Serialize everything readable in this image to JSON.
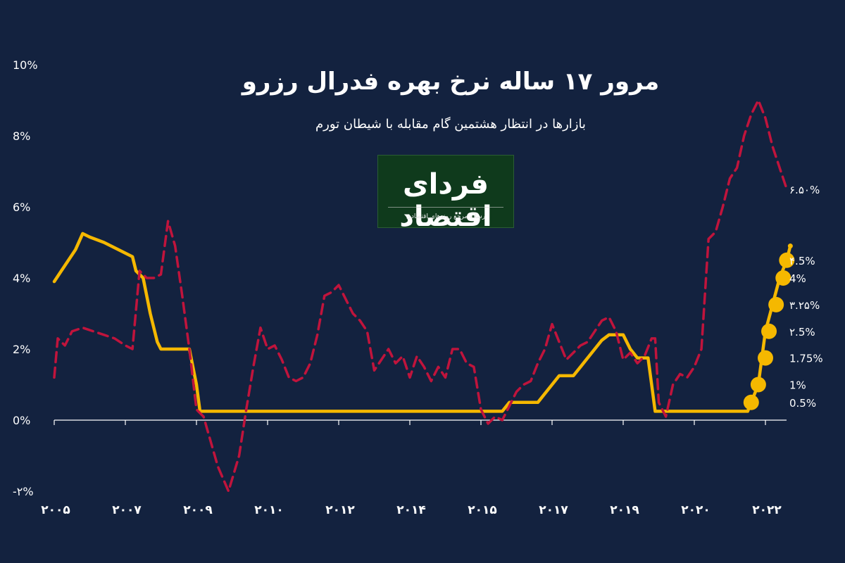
{
  "chart_data": {
    "type": "line",
    "title": "مرور ۱۷ ساله نرخ بهره فدرال رزرو",
    "subtitle": "بازارها در انتظار هشتمین گام مقابله با شیطان تورم",
    "x_tick_labels": [
      "۲۰۰۵",
      "۲۰۰۷",
      "۲۰۰۹",
      "۲۰۱۰",
      "۲۰۱۲",
      "۲۰۱۴",
      "۲۰۱۵",
      "۲۰۱۷",
      "۲۰۱۹",
      "۲۰۲۰",
      "۲۰۲۲"
    ],
    "y_tick_labels": [
      "-۲%",
      "0%",
      "2%",
      "4%",
      "6%",
      "8%",
      "10%"
    ],
    "y_ticks": [
      -2,
      0,
      2,
      4,
      6,
      8,
      10
    ],
    "ylim": [
      -2,
      10
    ],
    "x_range_index": [
      0,
      10.4
    ],
    "colors": {
      "fed_rate": "#f5b800",
      "inflation": "#c0143c",
      "background": "#13223f"
    },
    "series": [
      {
        "key": "fed_rate",
        "style": "solid",
        "points": [
          [
            0,
            3.9
          ],
          [
            0.1,
            4.2
          ],
          [
            0.3,
            4.8
          ],
          [
            0.4,
            5.25
          ],
          [
            0.5,
            5.15
          ],
          [
            0.7,
            5.0
          ],
          [
            0.9,
            4.8
          ],
          [
            1.1,
            4.6
          ],
          [
            1.15,
            4.2
          ],
          [
            1.25,
            4.0
          ],
          [
            1.35,
            3.0
          ],
          [
            1.45,
            2.2
          ],
          [
            1.5,
            2.0
          ],
          [
            1.6,
            2.0
          ],
          [
            1.7,
            2.0
          ],
          [
            1.9,
            2.0
          ],
          [
            2.0,
            1.0
          ],
          [
            2.05,
            0.25
          ],
          [
            2.1,
            0.25
          ],
          [
            3.0,
            0.25
          ],
          [
            4.0,
            0.25
          ],
          [
            5.0,
            0.25
          ],
          [
            6.0,
            0.25
          ],
          [
            6.3,
            0.25
          ],
          [
            6.4,
            0.5
          ],
          [
            6.8,
            0.5
          ],
          [
            6.9,
            0.75
          ],
          [
            7.0,
            1.0
          ],
          [
            7.1,
            1.25
          ],
          [
            7.3,
            1.25
          ],
          [
            7.4,
            1.5
          ],
          [
            7.5,
            1.75
          ],
          [
            7.6,
            2.0
          ],
          [
            7.7,
            2.25
          ],
          [
            7.8,
            2.4
          ],
          [
            7.9,
            2.4
          ],
          [
            8.0,
            2.4
          ],
          [
            8.1,
            2.0
          ],
          [
            8.2,
            1.75
          ],
          [
            8.35,
            1.75
          ],
          [
            8.4,
            1.0
          ],
          [
            8.45,
            0.25
          ],
          [
            8.6,
            0.25
          ],
          [
            9.0,
            0.25
          ],
          [
            9.5,
            0.25
          ],
          [
            9.75,
            0.25
          ],
          [
            9.8,
            0.5
          ],
          [
            9.9,
            1.0
          ],
          [
            9.95,
            1.75
          ],
          [
            10.0,
            2.5
          ],
          [
            10.1,
            3.25
          ],
          [
            10.2,
            4.0
          ],
          [
            10.3,
            4.5
          ],
          [
            10.35,
            4.9
          ]
        ],
        "markers": [
          [
            9.8,
            0.5
          ],
          [
            9.9,
            1.0
          ],
          [
            10.0,
            1.75
          ],
          [
            10.05,
            2.5
          ],
          [
            10.15,
            3.25
          ],
          [
            10.25,
            4.0
          ],
          [
            10.3,
            4.5
          ]
        ]
      },
      {
        "key": "inflation",
        "style": "dashed",
        "points": [
          [
            0,
            1.2
          ],
          [
            0.05,
            2.3
          ],
          [
            0.15,
            2.1
          ],
          [
            0.25,
            2.5
          ],
          [
            0.4,
            2.6
          ],
          [
            0.55,
            2.5
          ],
          [
            0.7,
            2.4
          ],
          [
            0.85,
            2.3
          ],
          [
            1.0,
            2.1
          ],
          [
            1.1,
            2.0
          ],
          [
            1.2,
            4.2
          ],
          [
            1.3,
            4.0
          ],
          [
            1.4,
            4.0
          ],
          [
            1.5,
            4.1
          ],
          [
            1.6,
            5.6
          ],
          [
            1.7,
            4.9
          ],
          [
            1.8,
            3.5
          ],
          [
            1.9,
            2.0
          ],
          [
            2.0,
            0.3
          ],
          [
            2.1,
            0.1
          ],
          [
            2.3,
            -1.3
          ],
          [
            2.45,
            -2.0
          ],
          [
            2.6,
            -1.0
          ],
          [
            2.7,
            0.3
          ],
          [
            2.8,
            1.5
          ],
          [
            2.9,
            2.6
          ],
          [
            3.0,
            2.0
          ],
          [
            3.1,
            2.1
          ],
          [
            3.2,
            1.7
          ],
          [
            3.3,
            1.2
          ],
          [
            3.4,
            1.1
          ],
          [
            3.5,
            1.2
          ],
          [
            3.6,
            1.6
          ],
          [
            3.7,
            2.4
          ],
          [
            3.8,
            3.5
          ],
          [
            3.9,
            3.6
          ],
          [
            4.0,
            3.8
          ],
          [
            4.1,
            3.4
          ],
          [
            4.2,
            3.0
          ],
          [
            4.3,
            2.8
          ],
          [
            4.4,
            2.5
          ],
          [
            4.5,
            1.4
          ],
          [
            4.6,
            1.7
          ],
          [
            4.7,
            2.0
          ],
          [
            4.8,
            1.6
          ],
          [
            4.9,
            1.8
          ],
          [
            5.0,
            1.2
          ],
          [
            5.1,
            1.8
          ],
          [
            5.2,
            1.5
          ],
          [
            5.3,
            1.1
          ],
          [
            5.4,
            1.5
          ],
          [
            5.5,
            1.2
          ],
          [
            5.6,
            2.0
          ],
          [
            5.7,
            2.0
          ],
          [
            5.8,
            1.6
          ],
          [
            5.9,
            1.5
          ],
          [
            6.0,
            0.3
          ],
          [
            6.1,
            -0.1
          ],
          [
            6.2,
            0.1
          ],
          [
            6.3,
            0.0
          ],
          [
            6.4,
            0.4
          ],
          [
            6.5,
            0.8
          ],
          [
            6.6,
            1.0
          ],
          [
            6.7,
            1.1
          ],
          [
            6.8,
            1.6
          ],
          [
            6.9,
            2.0
          ],
          [
            7.0,
            2.7
          ],
          [
            7.1,
            2.2
          ],
          [
            7.2,
            1.7
          ],
          [
            7.3,
            1.9
          ],
          [
            7.4,
            2.1
          ],
          [
            7.5,
            2.2
          ],
          [
            7.6,
            2.5
          ],
          [
            7.7,
            2.8
          ],
          [
            7.8,
            2.9
          ],
          [
            7.9,
            2.5
          ],
          [
            8.0,
            1.7
          ],
          [
            8.1,
            1.9
          ],
          [
            8.2,
            1.6
          ],
          [
            8.3,
            1.8
          ],
          [
            8.4,
            2.3
          ],
          [
            8.45,
            2.3
          ],
          [
            8.5,
            0.5
          ],
          [
            8.6,
            0.1
          ],
          [
            8.7,
            1.0
          ],
          [
            8.8,
            1.3
          ],
          [
            8.9,
            1.2
          ],
          [
            9.0,
            1.5
          ],
          [
            9.1,
            2.0
          ],
          [
            9.2,
            5.1
          ],
          [
            9.3,
            5.3
          ],
          [
            9.4,
            6.0
          ],
          [
            9.5,
            6.8
          ],
          [
            9.6,
            7.1
          ],
          [
            9.7,
            8.0
          ],
          [
            9.8,
            8.6
          ],
          [
            9.9,
            9.0
          ],
          [
            10.0,
            8.5
          ],
          [
            10.1,
            7.7
          ],
          [
            10.2,
            7.1
          ],
          [
            10.3,
            6.5
          ]
        ]
      }
    ],
    "annotations": [
      {
        "text": "۶.۵۰%",
        "x": 10.35,
        "y": 6.5
      },
      {
        "text": "۴.5%",
        "x": 10.35,
        "y": 4.5
      },
      {
        "text": "4%",
        "x": 10.35,
        "y": 4.0
      },
      {
        "text": "۳.۲۵%",
        "x": 10.35,
        "y": 3.25
      },
      {
        "text": "۲.5%",
        "x": 10.35,
        "y": 2.5
      },
      {
        "text": "1.75%",
        "x": 10.35,
        "y": 1.75
      },
      {
        "text": "1%",
        "x": 10.35,
        "y": 1.0
      },
      {
        "text": "0.5%",
        "x": 10.35,
        "y": 0.5
      }
    ]
  },
  "logo": {
    "name": "فردای اقتصاد",
    "tagline": "رسانه مرجع روندهای اقتصادی"
  }
}
